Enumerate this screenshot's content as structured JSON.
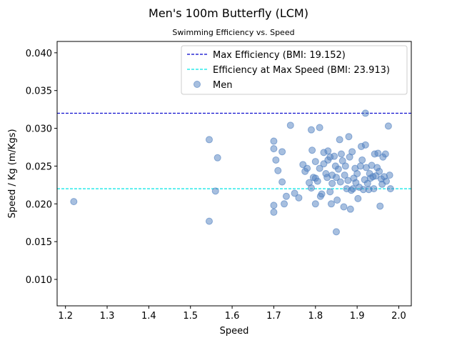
{
  "chart_data": {
    "type": "scatter",
    "title": "Men's 100m Butterfly (LCM)",
    "subtitle": "Swimming Efficiency vs. Speed",
    "xlabel": "Speed",
    "ylabel": "Speed / Kg (m/Kgs)",
    "xlim": [
      1.18,
      2.03
    ],
    "ylim": [
      0.0065,
      0.0415
    ],
    "xticks": [
      "1.2",
      "1.3",
      "1.4",
      "1.5",
      "1.6",
      "1.7",
      "1.8",
      "1.9",
      "2.0"
    ],
    "yticks": [
      "0.010",
      "0.015",
      "0.020",
      "0.025",
      "0.030",
      "0.035",
      "0.040"
    ],
    "grid": false,
    "legend_position": "top-right",
    "colors": {
      "points": "#4f7fbf",
      "max_efficiency": "#0000cc",
      "max_speed": "#00e5e5"
    },
    "reference_lines": [
      {
        "label": "Max Efficiency (BMI: 19.152)",
        "y": 0.032,
        "style": "dashed",
        "color": "#0000cc"
      },
      {
        "label": "Efficiency at Max Speed (BMI: 23.913)",
        "y": 0.022,
        "style": "dashed",
        "color": "#00e5e5"
      }
    ],
    "series": [
      {
        "name": "Men",
        "points": [
          [
            1.22,
            0.0203
          ],
          [
            1.545,
            0.0285
          ],
          [
            1.545,
            0.0177
          ],
          [
            1.56,
            0.0217
          ],
          [
            1.565,
            0.0261
          ],
          [
            1.7,
            0.0273
          ],
          [
            1.7,
            0.0283
          ],
          [
            1.7,
            0.0198
          ],
          [
            1.7,
            0.0189
          ],
          [
            1.705,
            0.0258
          ],
          [
            1.71,
            0.0244
          ],
          [
            1.72,
            0.0229
          ],
          [
            1.72,
            0.0269
          ],
          [
            1.725,
            0.02
          ],
          [
            1.73,
            0.021
          ],
          [
            1.74,
            0.0304
          ],
          [
            1.75,
            0.0214
          ],
          [
            1.76,
            0.0208
          ],
          [
            1.77,
            0.0252
          ],
          [
            1.775,
            0.0243
          ],
          [
            1.78,
            0.0247
          ],
          [
            1.785,
            0.0228
          ],
          [
            1.79,
            0.0221
          ],
          [
            1.79,
            0.0298
          ],
          [
            1.792,
            0.0271
          ],
          [
            1.795,
            0.0235
          ],
          [
            1.8,
            0.0234
          ],
          [
            1.8,
            0.0256
          ],
          [
            1.8,
            0.02
          ],
          [
            1.805,
            0.023
          ],
          [
            1.81,
            0.0301
          ],
          [
            1.81,
            0.0247
          ],
          [
            1.812,
            0.021
          ],
          [
            1.815,
            0.0213
          ],
          [
            1.82,
            0.0268
          ],
          [
            1.82,
            0.0253
          ],
          [
            1.825,
            0.024
          ],
          [
            1.828,
            0.0235
          ],
          [
            1.83,
            0.0258
          ],
          [
            1.83,
            0.027
          ],
          [
            1.835,
            0.0216
          ],
          [
            1.835,
            0.0262
          ],
          [
            1.838,
            0.02
          ],
          [
            1.84,
            0.0238
          ],
          [
            1.84,
            0.0227
          ],
          [
            1.845,
            0.0263
          ],
          [
            1.848,
            0.025
          ],
          [
            1.85,
            0.0163
          ],
          [
            1.85,
            0.0235
          ],
          [
            1.852,
            0.0205
          ],
          [
            1.855,
            0.0246
          ],
          [
            1.858,
            0.0285
          ],
          [
            1.86,
            0.0229
          ],
          [
            1.862,
            0.0266
          ],
          [
            1.865,
            0.0257
          ],
          [
            1.868,
            0.0196
          ],
          [
            1.87,
            0.0238
          ],
          [
            1.872,
            0.025
          ],
          [
            1.875,
            0.022
          ],
          [
            1.878,
            0.0231
          ],
          [
            1.88,
            0.0289
          ],
          [
            1.882,
            0.0262
          ],
          [
            1.884,
            0.0193
          ],
          [
            1.886,
            0.0218
          ],
          [
            1.888,
            0.0269
          ],
          [
            1.89,
            0.022
          ],
          [
            1.892,
            0.0234
          ],
          [
            1.895,
            0.0247
          ],
          [
            1.897,
            0.0228
          ],
          [
            1.9,
            0.024
          ],
          [
            1.902,
            0.0207
          ],
          [
            1.905,
            0.0222
          ],
          [
            1.908,
            0.025
          ],
          [
            1.91,
            0.0276
          ],
          [
            1.912,
            0.0258
          ],
          [
            1.915,
            0.0219
          ],
          [
            1.918,
            0.0232
          ],
          [
            1.92,
            0.032
          ],
          [
            1.92,
            0.0278
          ],
          [
            1.922,
            0.0248
          ],
          [
            1.925,
            0.0227
          ],
          [
            1.928,
            0.0219
          ],
          [
            1.93,
            0.024
          ],
          [
            1.932,
            0.0234
          ],
          [
            1.935,
            0.0251
          ],
          [
            1.938,
            0.0236
          ],
          [
            1.94,
            0.022
          ],
          [
            1.942,
            0.0266
          ],
          [
            1.945,
            0.0237
          ],
          [
            1.948,
            0.0248
          ],
          [
            1.95,
            0.0267
          ],
          [
            1.953,
            0.0243
          ],
          [
            1.955,
            0.0197
          ],
          [
            1.958,
            0.0233
          ],
          [
            1.96,
            0.0226
          ],
          [
            1.962,
            0.0262
          ],
          [
            1.965,
            0.0236
          ],
          [
            1.968,
            0.0266
          ],
          [
            1.97,
            0.023
          ],
          [
            1.975,
            0.0303
          ],
          [
            1.978,
            0.0238
          ],
          [
            1.98,
            0.022
          ]
        ]
      }
    ]
  }
}
